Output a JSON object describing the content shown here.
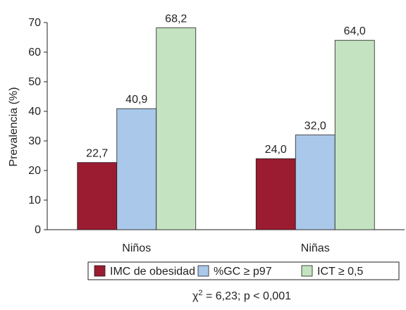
{
  "chart_data": {
    "type": "bar",
    "categories": [
      "Niños",
      "Niñas"
    ],
    "y_label": "Prevalencia (%)",
    "series": [
      {
        "name": "IMC de obesidad",
        "color": "#9b1b30",
        "values": [
          22.7,
          24.0
        ],
        "value_labels": [
          "22,7",
          "24,0"
        ]
      },
      {
        "name": "%GC ≥ p97",
        "color": "#a9c8ea",
        "values": [
          40.9,
          32.0
        ],
        "value_labels": [
          "40,9",
          "32,0"
        ]
      },
      {
        "name": "ICT ≥ 0,5",
        "color": "#c3e3c1",
        "values": [
          68.2,
          64.0
        ],
        "value_labels": [
          "68,2",
          "64,0"
        ]
      }
    ],
    "ylim": [
      0,
      70
    ],
    "yticks": [
      0,
      10,
      20,
      30,
      40,
      50,
      60,
      70
    ],
    "annotation": {
      "base": "χ",
      "sup": "2",
      "rest": " = 6,23; p < 0,001"
    }
  }
}
